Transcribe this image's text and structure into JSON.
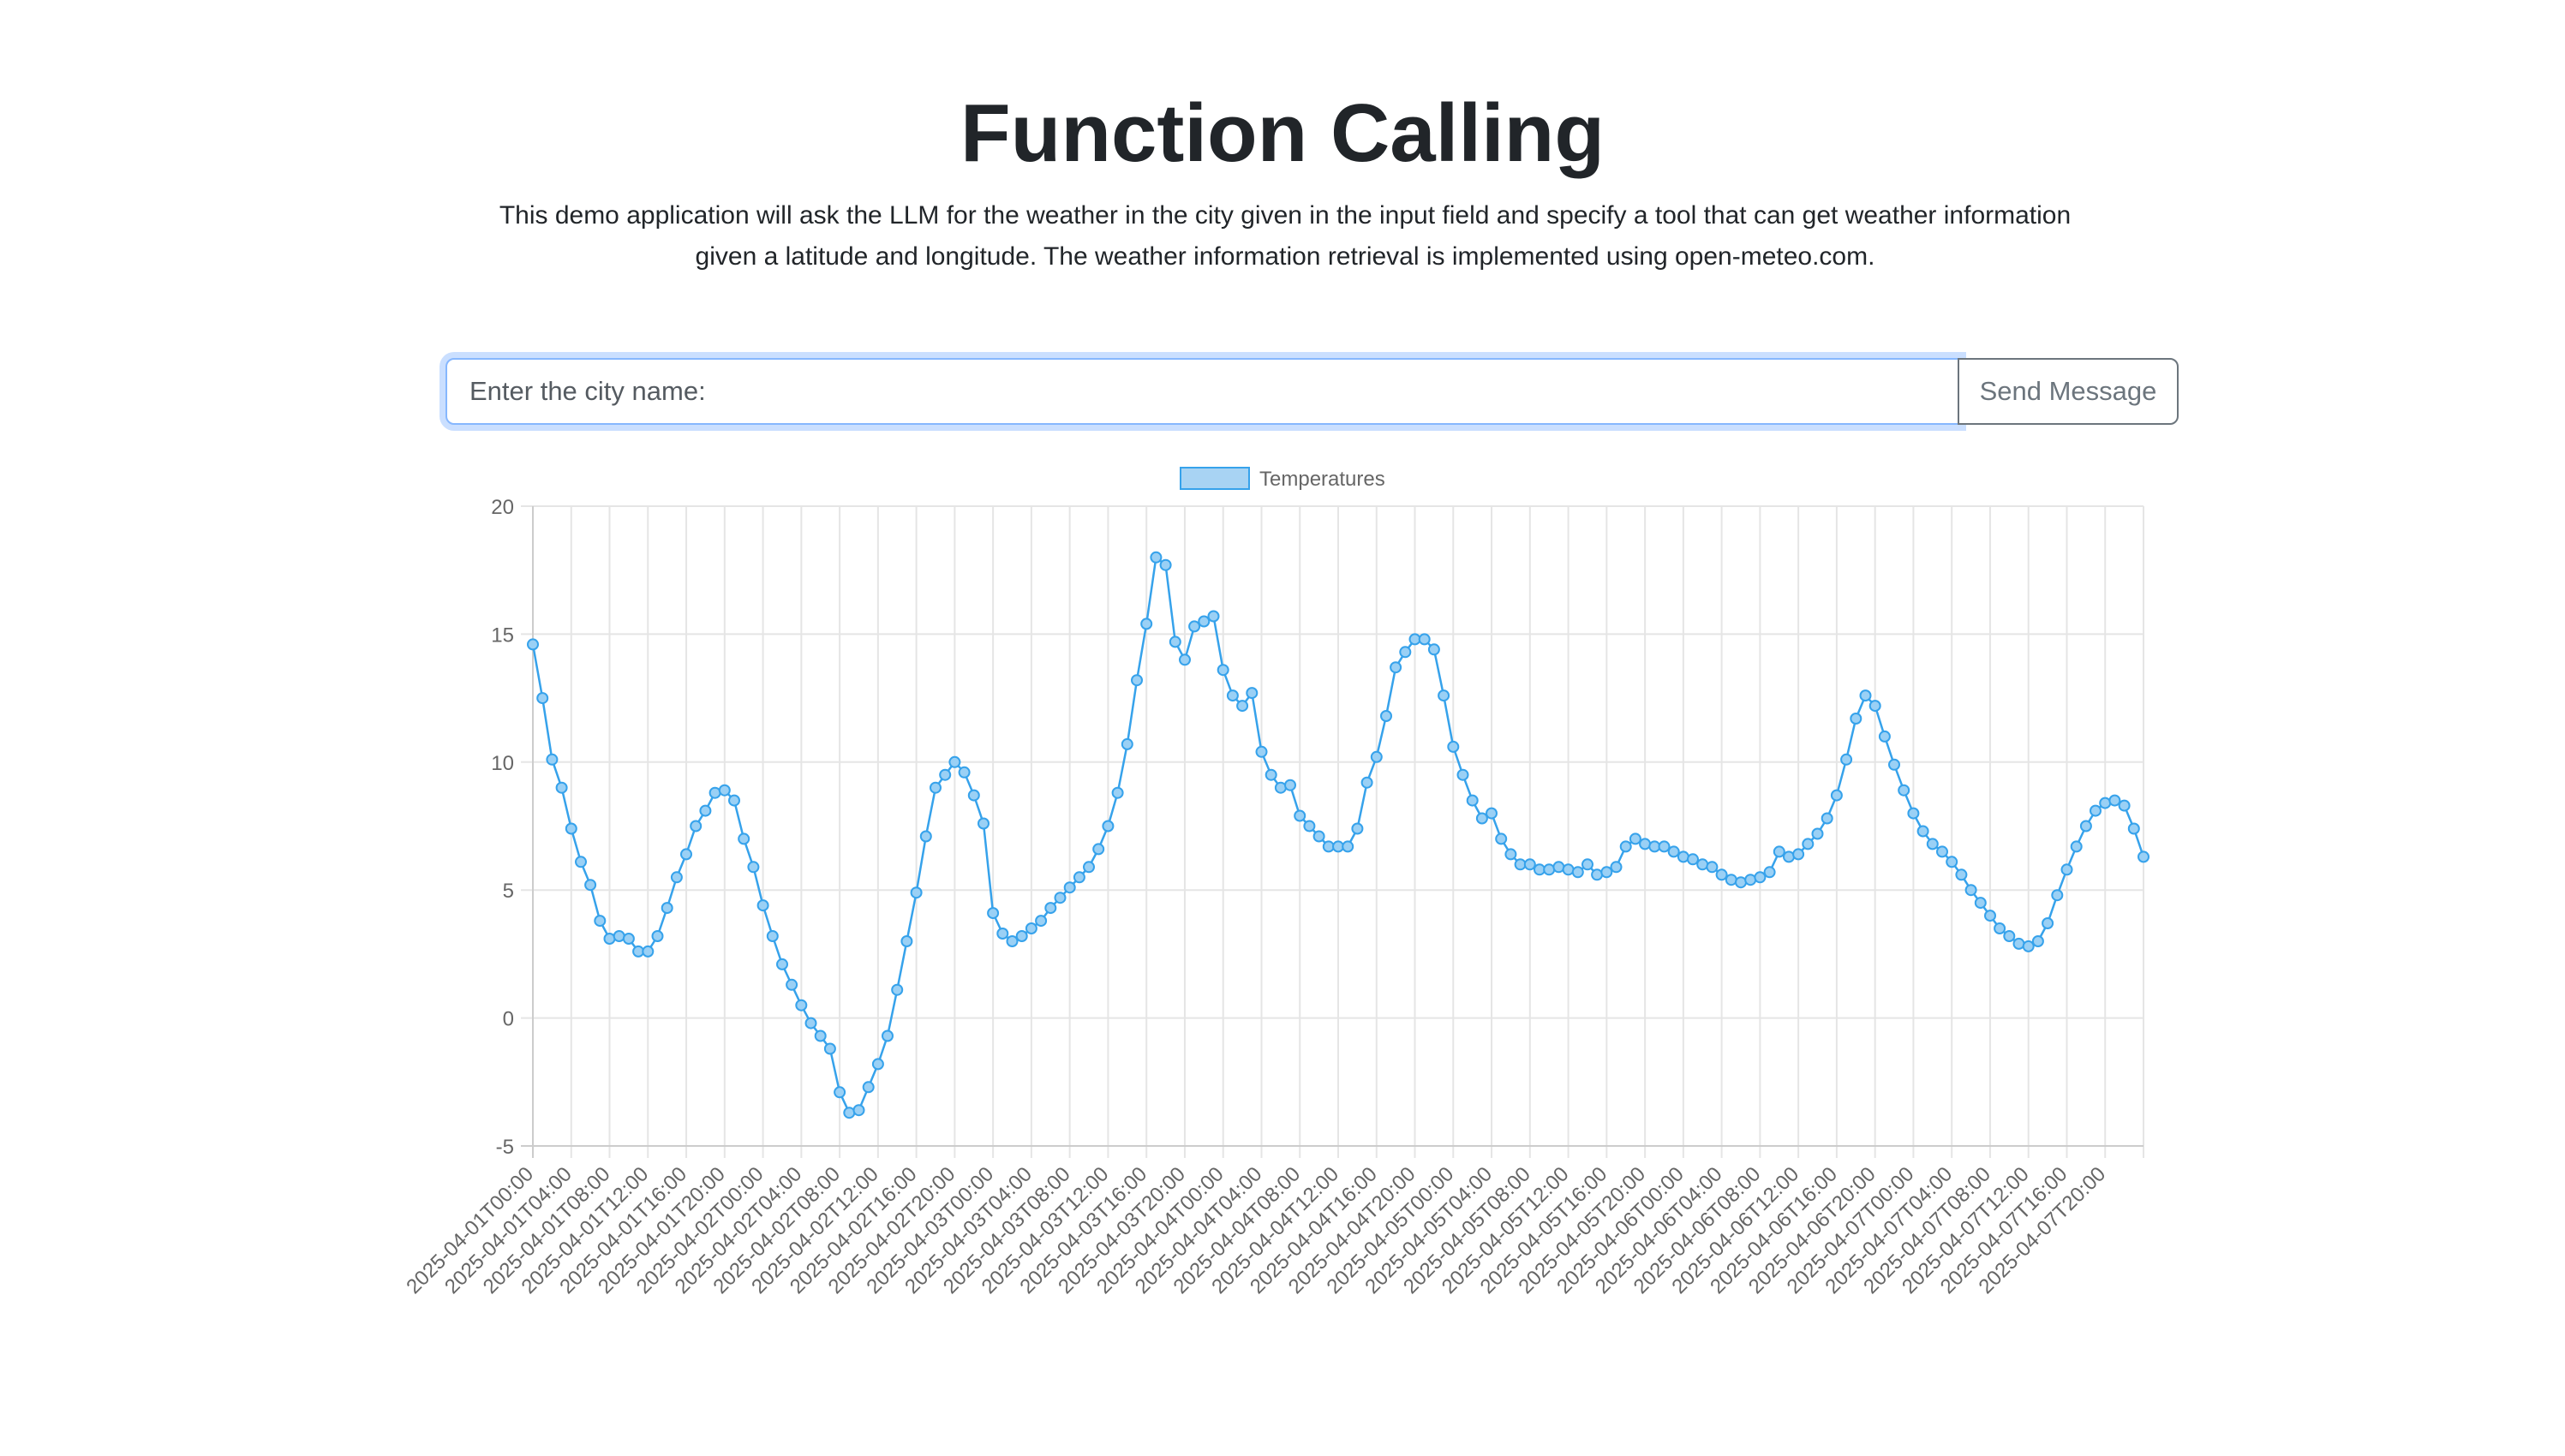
{
  "header": {
    "title": "Function Calling",
    "description": "This demo application will ask the LLM for the weather in the city given in the input field and specify a tool that can get weather information given a latitude and longitude. The weather information retrieval is implemented using open-meteo.com."
  },
  "form": {
    "city_placeholder": "Enter the city name:",
    "city_value": "",
    "send_label": "Send Message"
  },
  "colors": {
    "line": "#36a2eb",
    "point_fill": "#9ad0f5",
    "grid": "#e5e5e5",
    "axis_text": "#666666",
    "focus_border": "#86b7fe"
  },
  "chart_data": {
    "type": "line",
    "legend": "top-center",
    "grid": true,
    "ylim": [
      -5,
      20
    ],
    "yticks": [
      20,
      15,
      10,
      5,
      0,
      -5
    ],
    "x_start": "2025-04-01T00:00",
    "x_step_hours": 1,
    "tick_every": 4,
    "x_tick_labels": [
      "2025-04-01T00:00",
      "2025-04-01T04:00",
      "2025-04-01T08:00",
      "2025-04-01T12:00",
      "2025-04-01T16:00",
      "2025-04-01T20:00",
      "2025-04-02T00:00",
      "2025-04-02T04:00",
      "2025-04-02T08:00",
      "2025-04-02T12:00",
      "2025-04-02T16:00",
      "2025-04-02T20:00",
      "2025-04-03T00:00",
      "2025-04-03T04:00",
      "2025-04-03T08:00",
      "2025-04-03T12:00",
      "2025-04-03T16:00",
      "2025-04-03T20:00",
      "2025-04-04T00:00",
      "2025-04-04T04:00",
      "2025-04-04T08:00",
      "2025-04-04T12:00",
      "2025-04-04T16:00",
      "2025-04-04T20:00",
      "2025-04-05T00:00",
      "2025-04-05T04:00",
      "2025-04-05T08:00",
      "2025-04-05T12:00",
      "2025-04-05T16:00",
      "2025-04-05T20:00",
      "2025-04-06T00:00",
      "2025-04-06T04:00",
      "2025-04-06T08:00",
      "2025-04-06T12:00",
      "2025-04-06T16:00",
      "2025-04-06T20:00",
      "2025-04-07T00:00",
      "2025-04-07T04:00",
      "2025-04-07T08:00",
      "2025-04-07T12:00",
      "2025-04-07T16:00",
      "2025-04-07T20:00"
    ],
    "series": [
      {
        "name": "Temperatures",
        "values": [
          14.6,
          12.5,
          10.1,
          9.0,
          7.4,
          6.1,
          5.2,
          3.8,
          3.1,
          3.2,
          3.1,
          2.6,
          2.6,
          3.2,
          4.3,
          5.5,
          6.4,
          7.5,
          8.1,
          8.8,
          8.9,
          8.5,
          7.0,
          5.9,
          4.4,
          3.2,
          2.1,
          1.3,
          0.5,
          -0.2,
          -0.7,
          -1.2,
          -2.9,
          -3.7,
          -3.6,
          -2.7,
          -1.8,
          -0.7,
          1.1,
          3.0,
          4.9,
          7.1,
          9.0,
          9.5,
          10.0,
          9.6,
          8.7,
          7.6,
          4.1,
          3.3,
          3.0,
          3.2,
          3.5,
          3.8,
          4.3,
          4.7,
          5.1,
          5.5,
          5.9,
          6.6,
          7.5,
          8.8,
          10.7,
          13.2,
          15.4,
          18.0,
          17.7,
          14.7,
          14.0,
          15.3,
          15.5,
          15.7,
          13.6,
          12.6,
          12.2,
          12.7,
          10.4,
          9.5,
          9.0,
          9.1,
          7.9,
          7.5,
          7.1,
          6.7,
          6.7,
          6.7,
          7.4,
          9.2,
          10.2,
          11.8,
          13.7,
          14.3,
          14.8,
          14.8,
          14.4,
          12.6,
          10.6,
          9.5,
          8.5,
          7.8,
          8.0,
          7.0,
          6.4,
          6.0,
          6.0,
          5.8,
          5.8,
          5.9,
          5.8,
          5.7,
          6.0,
          5.6,
          5.7,
          5.9,
          6.7,
          7.0,
          6.8,
          6.7,
          6.7,
          6.5,
          6.3,
          6.2,
          6.0,
          5.9,
          5.6,
          5.4,
          5.3,
          5.4,
          5.5,
          5.7,
          6.5,
          6.3,
          6.4,
          6.8,
          7.2,
          7.8,
          8.7,
          10.1,
          11.7,
          12.6,
          12.2,
          11.0,
          9.9,
          8.9,
          8.0,
          7.3,
          6.8,
          6.5,
          6.1,
          5.6,
          5.0,
          4.5,
          4.0,
          3.5,
          3.2,
          2.9,
          2.8,
          3.0,
          3.7,
          4.8,
          5.8,
          6.7,
          7.5,
          8.1,
          8.4,
          8.5,
          8.3,
          7.4,
          6.3
        ]
      }
    ]
  }
}
